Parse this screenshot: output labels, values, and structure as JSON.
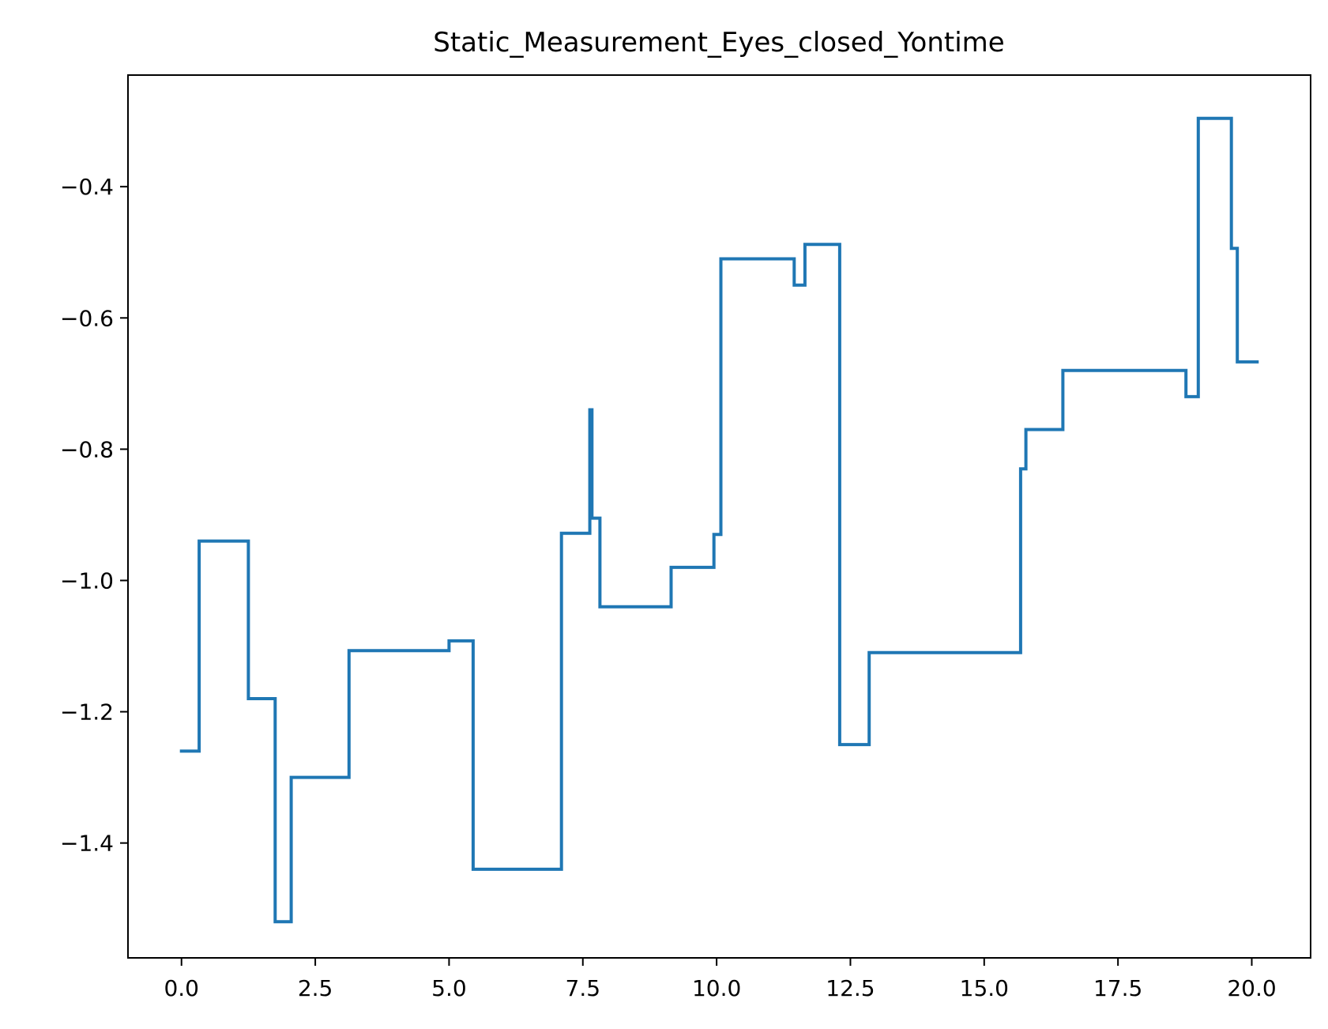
{
  "chart_data": {
    "type": "line",
    "drawstyle": "steps-post",
    "title": "Static_Measurement_Eyes_closed_Yontime",
    "xlabel": "",
    "ylabel": "",
    "xlim": [
      -1.0,
      21.1
    ],
    "ylim": [
      -1.575,
      -0.23
    ],
    "grid": false,
    "x_ticks": [
      0.0,
      2.5,
      5.0,
      7.5,
      10.0,
      12.5,
      15.0,
      17.5,
      20.0
    ],
    "x_tick_labels": [
      "0.0",
      "2.5",
      "5.0",
      "7.5",
      "10.0",
      "12.5",
      "15.0",
      "17.5",
      "20.0"
    ],
    "y_ticks": [
      -0.4,
      -0.6,
      -0.8,
      -1.0,
      -1.2,
      -1.4
    ],
    "y_tick_labels": [
      "−0.4",
      "−0.6",
      "−0.8",
      "−1.0",
      "−1.2",
      "−1.4"
    ],
    "series": [
      {
        "color": "#1f77b4",
        "x": [
          0.0,
          0.33,
          1.25,
          1.75,
          2.05,
          3.13,
          5.0,
          5.45,
          7.1,
          7.63,
          7.67,
          7.73,
          7.82,
          9.15,
          9.95,
          10.08,
          11.45,
          11.65,
          12.3,
          12.85,
          15.68,
          15.78,
          16.47,
          18.77,
          19.0,
          19.62,
          19.73,
          20.1
        ],
        "y": [
          -1.26,
          -0.94,
          -1.18,
          -1.52,
          -1.3,
          -1.107,
          -1.092,
          -1.44,
          -0.928,
          -0.74,
          -0.905,
          -0.905,
          -1.04,
          -0.98,
          -0.93,
          -0.51,
          -0.55,
          -0.488,
          -1.25,
          -1.11,
          -0.83,
          -0.77,
          -0.68,
          -0.72,
          -0.296,
          -0.494,
          -0.667,
          -0.667
        ]
      }
    ]
  }
}
